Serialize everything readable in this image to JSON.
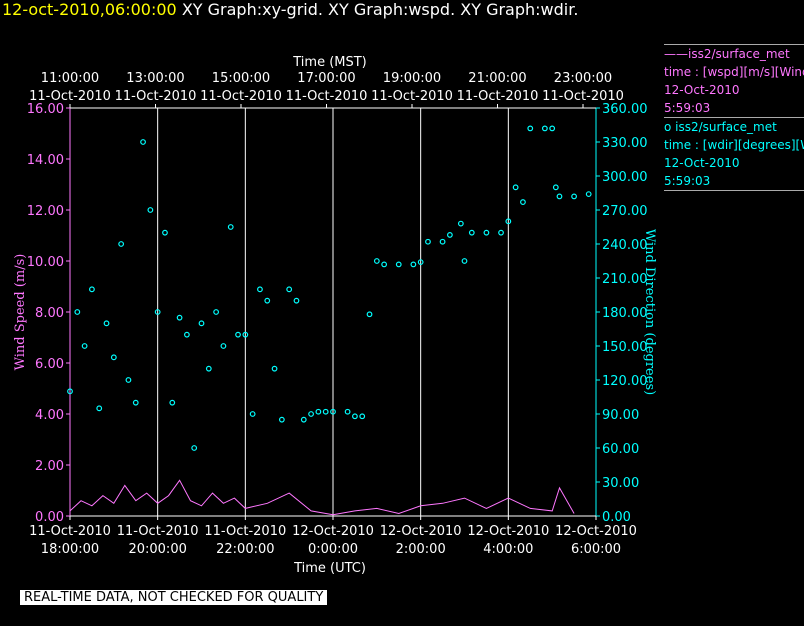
{
  "header": {
    "timestamp": "12-oct-2010,06:00:00",
    "graphs": "XY Graph:xy-grid.  XY Graph:wspd.  XY Graph:wdir."
  },
  "legend": {
    "wspd": {
      "line1": "——iss2/surface_met",
      "line2": "time : [wspd][m/s][Wind",
      "line3": "12-Oct-2010",
      "line4": "5:59:03"
    },
    "wdir": {
      "line1": "o  iss2/surface_met",
      "line2": "time : [wdir][degrees][W",
      "line3": "12-Oct-2010",
      "line4": "5:59:03"
    }
  },
  "footer": "REAL-TIME DATA, NOT CHECKED FOR QUALITY",
  "colors": {
    "background": "#000000",
    "wspd": "#ff77ff",
    "wdir": "#00ffff",
    "grid": "#ffffff",
    "timestamp": "#ffff00"
  },
  "chart_data": {
    "type": "scatter",
    "top_axis": {
      "label": "Time (MST)",
      "ticks": [
        {
          "time": "11:00:00",
          "date": "11-Oct-2010"
        },
        {
          "time": "13:00:00",
          "date": "11-Oct-2010"
        },
        {
          "time": "15:00:00",
          "date": "11-Oct-2010"
        },
        {
          "time": "17:00:00",
          "date": "11-Oct-2010"
        },
        {
          "time": "19:00:00",
          "date": "11-Oct-2010"
        },
        {
          "time": "21:00:00",
          "date": "11-Oct-2010"
        },
        {
          "time": "23:00:00",
          "date": "11-Oct-2010"
        }
      ]
    },
    "bottom_axis": {
      "label": "Time (UTC)",
      "ticks": [
        {
          "date": "11-Oct-2010",
          "time": "18:00:00"
        },
        {
          "date": "11-Oct-2010",
          "time": "20:00:00"
        },
        {
          "date": "11-Oct-2010",
          "time": "22:00:00"
        },
        {
          "date": "12-Oct-2010",
          "time": "0:00:00"
        },
        {
          "date": "12-Oct-2010",
          "time": "2:00:00"
        },
        {
          "date": "12-Oct-2010",
          "time": "4:00:00"
        },
        {
          "date": "12-Oct-2010",
          "time": "6:00:00"
        }
      ]
    },
    "x_range_utc_hours_from": "11-Oct-2010 18:00:00",
    "xlim": [
      "11-Oct-2010 18:00",
      "12-Oct-2010 06:00"
    ],
    "grid_lines_utc": [
      "11-Oct-2010 20:00",
      "11-Oct-2010 22:00",
      "12-Oct-2010 00:00",
      "12-Oct-2010 02:00",
      "12-Oct-2010 04:00"
    ],
    "left_axis": {
      "label": "Wind Speed (m/s)",
      "ylim": [
        0,
        16
      ],
      "ticks": [
        "0.00",
        "2.00",
        "4.00",
        "6.00",
        "8.00",
        "10.00",
        "12.00",
        "14.00",
        "16.00"
      ]
    },
    "right_axis": {
      "label": "Wind Direction (degrees)",
      "ylim": [
        0,
        360
      ],
      "ticks": [
        "0.00",
        "30.00",
        "60.00",
        "90.00",
        "120.00",
        "150.00",
        "180.00",
        "210.00",
        "240.00",
        "270.00",
        "300.00",
        "330.00",
        "360.00"
      ]
    },
    "series": [
      {
        "name": "iss2/surface_met wspd",
        "style": "line",
        "axis": "left",
        "points": [
          [
            "11-Oct-2010 18:00",
            0.2
          ],
          [
            "11-Oct-2010 18:15",
            0.6
          ],
          [
            "11-Oct-2010 18:30",
            0.4
          ],
          [
            "11-Oct-2010 18:45",
            0.8
          ],
          [
            "11-Oct-2010 19:00",
            0.5
          ],
          [
            "11-Oct-2010 19:15",
            1.2
          ],
          [
            "11-Oct-2010 19:30",
            0.6
          ],
          [
            "11-Oct-2010 19:45",
            0.9
          ],
          [
            "11-Oct-2010 20:00",
            0.5
          ],
          [
            "11-Oct-2010 20:15",
            0.8
          ],
          [
            "11-Oct-2010 20:30",
            1.4
          ],
          [
            "11-Oct-2010 20:45",
            0.6
          ],
          [
            "11-Oct-2010 21:00",
            0.4
          ],
          [
            "11-Oct-2010 21:15",
            0.9
          ],
          [
            "11-Oct-2010 21:30",
            0.5
          ],
          [
            "11-Oct-2010 21:45",
            0.7
          ],
          [
            "11-Oct-2010 22:00",
            0.3
          ],
          [
            "11-Oct-2010 22:30",
            0.5
          ],
          [
            "11-Oct-2010 23:00",
            0.9
          ],
          [
            "11-Oct-2010 23:30",
            0.2
          ],
          [
            "12-Oct-2010 00:00",
            0.05
          ],
          [
            "12-Oct-2010 00:30",
            0.2
          ],
          [
            "12-Oct-2010 01:00",
            0.3
          ],
          [
            "12-Oct-2010 01:30",
            0.1
          ],
          [
            "12-Oct-2010 02:00",
            0.4
          ],
          [
            "12-Oct-2010 02:30",
            0.5
          ],
          [
            "12-Oct-2010 03:00",
            0.7
          ],
          [
            "12-Oct-2010 03:30",
            0.3
          ],
          [
            "12-Oct-2010 04:00",
            0.7
          ],
          [
            "12-Oct-2010 04:30",
            0.3
          ],
          [
            "12-Oct-2010 05:00",
            0.2
          ],
          [
            "12-Oct-2010 05:10",
            1.1
          ],
          [
            "12-Oct-2010 05:30",
            0.1
          ]
        ]
      },
      {
        "name": "iss2/surface_met wdir",
        "style": "circles",
        "axis": "right",
        "points": [
          [
            "11-Oct-2010 18:00",
            110
          ],
          [
            "11-Oct-2010 18:10",
            180
          ],
          [
            "11-Oct-2010 18:20",
            150
          ],
          [
            "11-Oct-2010 18:30",
            200
          ],
          [
            "11-Oct-2010 18:40",
            95
          ],
          [
            "11-Oct-2010 18:50",
            170
          ],
          [
            "11-Oct-2010 19:00",
            140
          ],
          [
            "11-Oct-2010 19:10",
            240
          ],
          [
            "11-Oct-2010 19:20",
            120
          ],
          [
            "11-Oct-2010 19:30",
            100
          ],
          [
            "11-Oct-2010 19:40",
            330
          ],
          [
            "11-Oct-2010 19:50",
            270
          ],
          [
            "11-Oct-2010 20:00",
            180
          ],
          [
            "11-Oct-2010 20:10",
            250
          ],
          [
            "11-Oct-2010 20:20",
            100
          ],
          [
            "11-Oct-2010 20:30",
            175
          ],
          [
            "11-Oct-2010 20:40",
            160
          ],
          [
            "11-Oct-2010 20:50",
            60
          ],
          [
            "11-Oct-2010 21:00",
            170
          ],
          [
            "11-Oct-2010 21:10",
            130
          ],
          [
            "11-Oct-2010 21:20",
            180
          ],
          [
            "11-Oct-2010 21:30",
            150
          ],
          [
            "11-Oct-2010 21:40",
            255
          ],
          [
            "11-Oct-2010 21:50",
            160
          ],
          [
            "11-Oct-2010 22:00",
            160
          ],
          [
            "11-Oct-2010 22:10",
            90
          ],
          [
            "11-Oct-2010 22:20",
            200
          ],
          [
            "11-Oct-2010 22:30",
            190
          ],
          [
            "11-Oct-2010 22:40",
            130
          ],
          [
            "11-Oct-2010 22:50",
            85
          ],
          [
            "11-Oct-2010 23:00",
            200
          ],
          [
            "11-Oct-2010 23:10",
            190
          ],
          [
            "11-Oct-2010 23:20",
            85
          ],
          [
            "11-Oct-2010 23:30",
            90
          ],
          [
            "11-Oct-2010 23:40",
            92
          ],
          [
            "11-Oct-2010 23:50",
            92
          ],
          [
            "12-Oct-2010 00:00",
            92
          ],
          [
            "12-Oct-2010 00:20",
            92
          ],
          [
            "12-Oct-2010 00:30",
            88
          ],
          [
            "12-Oct-2010 00:40",
            88
          ],
          [
            "12-Oct-2010 00:50",
            178
          ],
          [
            "12-Oct-2010 01:00",
            225
          ],
          [
            "12-Oct-2010 01:10",
            222
          ],
          [
            "12-Oct-2010 01:30",
            222
          ],
          [
            "12-Oct-2010 01:50",
            222
          ],
          [
            "12-Oct-2010 02:00",
            224
          ],
          [
            "12-Oct-2010 02:10",
            242
          ],
          [
            "12-Oct-2010 02:30",
            242
          ],
          [
            "12-Oct-2010 02:40",
            248
          ],
          [
            "12-Oct-2010 02:55",
            258
          ],
          [
            "12-Oct-2010 03:00",
            225
          ],
          [
            "12-Oct-2010 03:10",
            250
          ],
          [
            "12-Oct-2010 03:30",
            250
          ],
          [
            "12-Oct-2010 03:50",
            250
          ],
          [
            "12-Oct-2010 04:00",
            260
          ],
          [
            "12-Oct-2010 04:10",
            290
          ],
          [
            "12-Oct-2010 04:20",
            277
          ],
          [
            "12-Oct-2010 04:30",
            342
          ],
          [
            "12-Oct-2010 04:50",
            342
          ],
          [
            "12-Oct-2010 05:00",
            342
          ],
          [
            "12-Oct-2010 05:05",
            290
          ],
          [
            "12-Oct-2010 05:10",
            282
          ],
          [
            "12-Oct-2010 05:30",
            282
          ],
          [
            "12-Oct-2010 05:50",
            284
          ]
        ]
      }
    ]
  }
}
